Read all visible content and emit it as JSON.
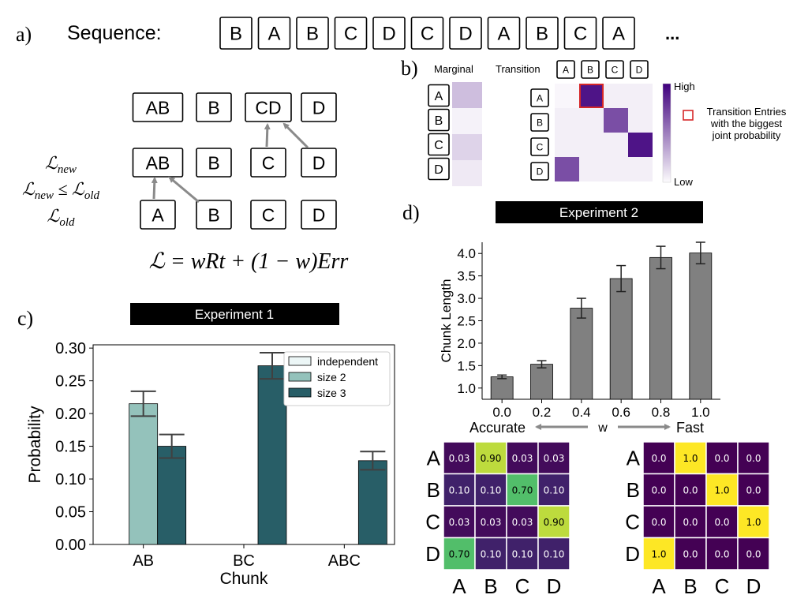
{
  "panel_a": {
    "label": "a)",
    "sequence_label": "Sequence:",
    "sequence": [
      "B",
      "A",
      "B",
      "C",
      "D",
      "C",
      "D",
      "A",
      "B",
      "C",
      "A"
    ],
    "ellipsis": "...",
    "top_row": [
      "AB",
      "B",
      "CD",
      "D"
    ],
    "mid_row": [
      "AB",
      "B",
      "C",
      "D"
    ],
    "bottom_row": [
      "A",
      "B",
      "C",
      "D"
    ],
    "loss_new": "ℒ",
    "loss_new_sub": "new",
    "loss_cmp": "ℒ",
    "loss_cmp_sub1": "new",
    "loss_cmp_leq": " ≤ ℒ",
    "loss_cmp_sub2": "old",
    "loss_old": "ℒ",
    "loss_old_sub": "old",
    "formula": "ℒ = wRt + (1 − w)Err"
  },
  "panel_b": {
    "label": "b)",
    "marginal_title": "Marginal",
    "transition_title": "Transition",
    "row_labels": [
      "A",
      "B",
      "C",
      "D"
    ],
    "col_labels": [
      "A",
      "B",
      "C",
      "D"
    ],
    "marginal_values": [
      0.7,
      0.1,
      0.45,
      0.2
    ],
    "transition_values": [
      [
        0.02,
        1.0,
        0.05,
        0.05
      ],
      [
        0.05,
        0.05,
        0.75,
        0.05
      ],
      [
        0.05,
        0.05,
        0.05,
        1.0
      ],
      [
        0.75,
        0.05,
        0.05,
        0.05
      ]
    ],
    "colorbar_high": "High",
    "colorbar_low": "Low",
    "legend_text": [
      "Transition Entries",
      "with the biggest",
      "joint probability"
    ],
    "colors": {
      "high": "#3f007d",
      "low": "#fcfbfd",
      "highlight": "#d62728"
    }
  },
  "panel_c": {
    "label": "c)",
    "banner": "Experiment 1"
  },
  "panel_d": {
    "label": "d)",
    "banner": "Experiment 2",
    "axis_left": "Accurate",
    "axis_mid": "w",
    "axis_right": "Fast",
    "heat_rows": [
      "A",
      "B",
      "C",
      "D"
    ],
    "heat_cols": [
      "A",
      "B",
      "C",
      "D"
    ],
    "heat_left": [
      [
        "0.03",
        "0.90",
        "0.03",
        "0.03"
      ],
      [
        "0.10",
        "0.10",
        "0.70",
        "0.10"
      ],
      [
        "0.03",
        "0.03",
        "0.03",
        "0.90"
      ],
      [
        "0.70",
        "0.10",
        "0.10",
        "0.10"
      ]
    ],
    "heat_right": [
      [
        "0.0",
        "1.0",
        "0.0",
        "0.0"
      ],
      [
        "0.0",
        "0.0",
        "1.0",
        "0.0"
      ],
      [
        "0.0",
        "0.0",
        "0.0",
        "1.0"
      ],
      [
        "1.0",
        "0.0",
        "0.0",
        "0.0"
      ]
    ]
  },
  "chart_data": [
    {
      "type": "bar",
      "title": "Experiment 1",
      "categories": [
        "AB",
        "BC",
        "ABC"
      ],
      "series": [
        {
          "name": "independent",
          "values": [
            0.0,
            0.0,
            0.0
          ],
          "color": "#ecf6f6"
        },
        {
          "name": "size 2",
          "values": [
            0.215,
            0.0,
            0.0
          ],
          "color": "#94c2bb"
        },
        {
          "name": "size 3",
          "values": [
            0.15,
            0.273,
            0.128
          ],
          "color": "#285e67"
        }
      ],
      "errors": [
        [
          0,
          0,
          0
        ],
        [
          0.019,
          0,
          0
        ],
        [
          0.018,
          0.02,
          0.014
        ]
      ],
      "xlabel": "Chunk",
      "ylabel": "Probability",
      "ylim": [
        0,
        0.305
      ],
      "yticks": [
        "0.00",
        "0.05",
        "0.10",
        "0.15",
        "0.20",
        "0.25",
        "0.30"
      ],
      "legend_position": "top-right"
    },
    {
      "type": "bar",
      "title": "Experiment 2",
      "categories": [
        "0.0",
        "0.2",
        "0.4",
        "0.6",
        "0.8",
        "1.0"
      ],
      "values": [
        1.25,
        1.53,
        2.78,
        3.44,
        3.91,
        4.01
      ],
      "errors": [
        0.04,
        0.08,
        0.22,
        0.29,
        0.25,
        0.24
      ],
      "xlabel": "w",
      "ylabel": "Chunk Length",
      "ylim": [
        0.75,
        4.25
      ],
      "yticks": [
        "1.0",
        "1.5",
        "2.0",
        "2.5",
        "3.0",
        "3.5",
        "4.0"
      ],
      "color": "#808080"
    }
  ]
}
